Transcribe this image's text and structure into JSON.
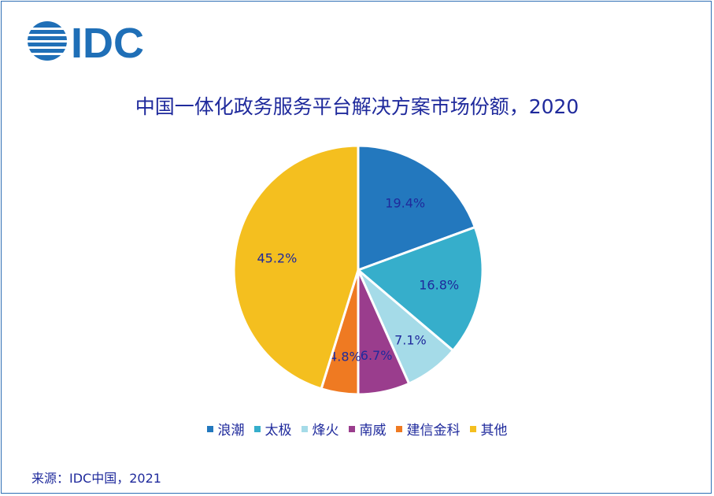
{
  "logo": {
    "text": "IDC",
    "color": "#1f6fb7"
  },
  "title": "中国一体化政务服务平台解决方案市场份额，2020",
  "source": "来源：IDC中国，2021",
  "chart_data": {
    "type": "pie",
    "title": "中国一体化政务服务平台解决方案市场份额，2020",
    "categories": [
      "浪潮",
      "太极",
      "烽火",
      "南威",
      "建信金科",
      "其他"
    ],
    "values": [
      19.4,
      16.8,
      7.1,
      6.7,
      4.8,
      45.2
    ],
    "labels": [
      "19.4%",
      "16.8%",
      "7.1%",
      "6.7%",
      "4.8%",
      "45.2%"
    ],
    "colors": [
      "#2378be",
      "#36aecb",
      "#a5dbe8",
      "#9a3d8d",
      "#ef7a22",
      "#f4bf1f"
    ],
    "legend_position": "bottom",
    "start": "12 o'clock",
    "direction": "clockwise"
  }
}
